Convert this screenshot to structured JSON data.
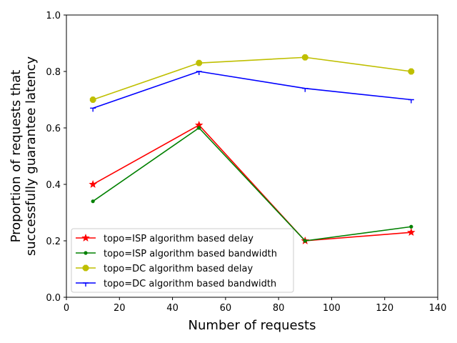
{
  "chart_data": {
    "type": "line",
    "xlabel": "Number of requests",
    "ylabel": "Proportion of requests that\nsuccessfully guarantee latency",
    "xlim": [
      0,
      140
    ],
    "ylim": [
      0.0,
      1.0
    ],
    "xticks": [
      0,
      20,
      40,
      60,
      80,
      100,
      120,
      140
    ],
    "yticks": [
      0.0,
      0.2,
      0.4,
      0.6,
      0.8,
      1.0
    ],
    "x": [
      10,
      50,
      90,
      130
    ],
    "grid": false,
    "legend_position": "lower-left",
    "series": [
      {
        "name": "topo=ISP algorithm based delay",
        "color": "#ff0000",
        "marker": "star",
        "values": [
          0.4,
          0.61,
          0.2,
          0.23
        ]
      },
      {
        "name": "topo=ISP algorithm based bandwidth",
        "color": "#008000",
        "marker": "point",
        "values": [
          0.34,
          0.6,
          0.2,
          0.25
        ]
      },
      {
        "name": "topo=DC algorithm based delay",
        "color": "#bfbf00",
        "marker": "octagon",
        "values": [
          0.7,
          0.83,
          0.85,
          0.8
        ]
      },
      {
        "name": "topo=DC algorithm based bandwidth",
        "color": "#0000ff",
        "marker": "tri",
        "values": [
          0.67,
          0.8,
          0.74,
          0.7
        ]
      }
    ]
  }
}
